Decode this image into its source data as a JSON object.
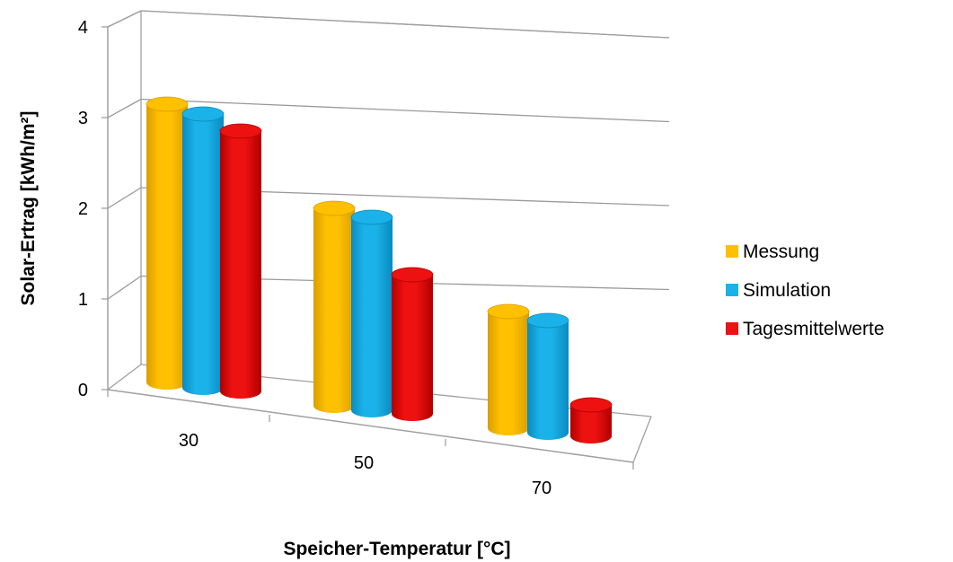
{
  "chart_data": {
    "type": "bar",
    "style": "3d-cylinder",
    "categories": [
      "30",
      "50",
      "70"
    ],
    "series": [
      {
        "name": "Messung",
        "values": [
          3.1,
          2.2,
          1.3
        ],
        "color": "#FFC000",
        "shade": "#D99E00"
      },
      {
        "name": "Simulation",
        "values": [
          3.05,
          2.15,
          1.25
        ],
        "color": "#1AB2E8",
        "shade": "#0A8AC0"
      },
      {
        "name": "Tagesmittelwerte",
        "values": [
          2.9,
          1.55,
          0.35
        ],
        "color": "#EE1111",
        "shade": "#B00000"
      }
    ],
    "y_ticks": [
      "0",
      "1",
      "2",
      "3",
      "4"
    ],
    "ylim": [
      0,
      4
    ],
    "xlabel": "Speicher-Temperatur [°C]",
    "ylabel": "Solar-Ertrag [kWh/m²]",
    "grid": true,
    "legend_position": "right"
  }
}
